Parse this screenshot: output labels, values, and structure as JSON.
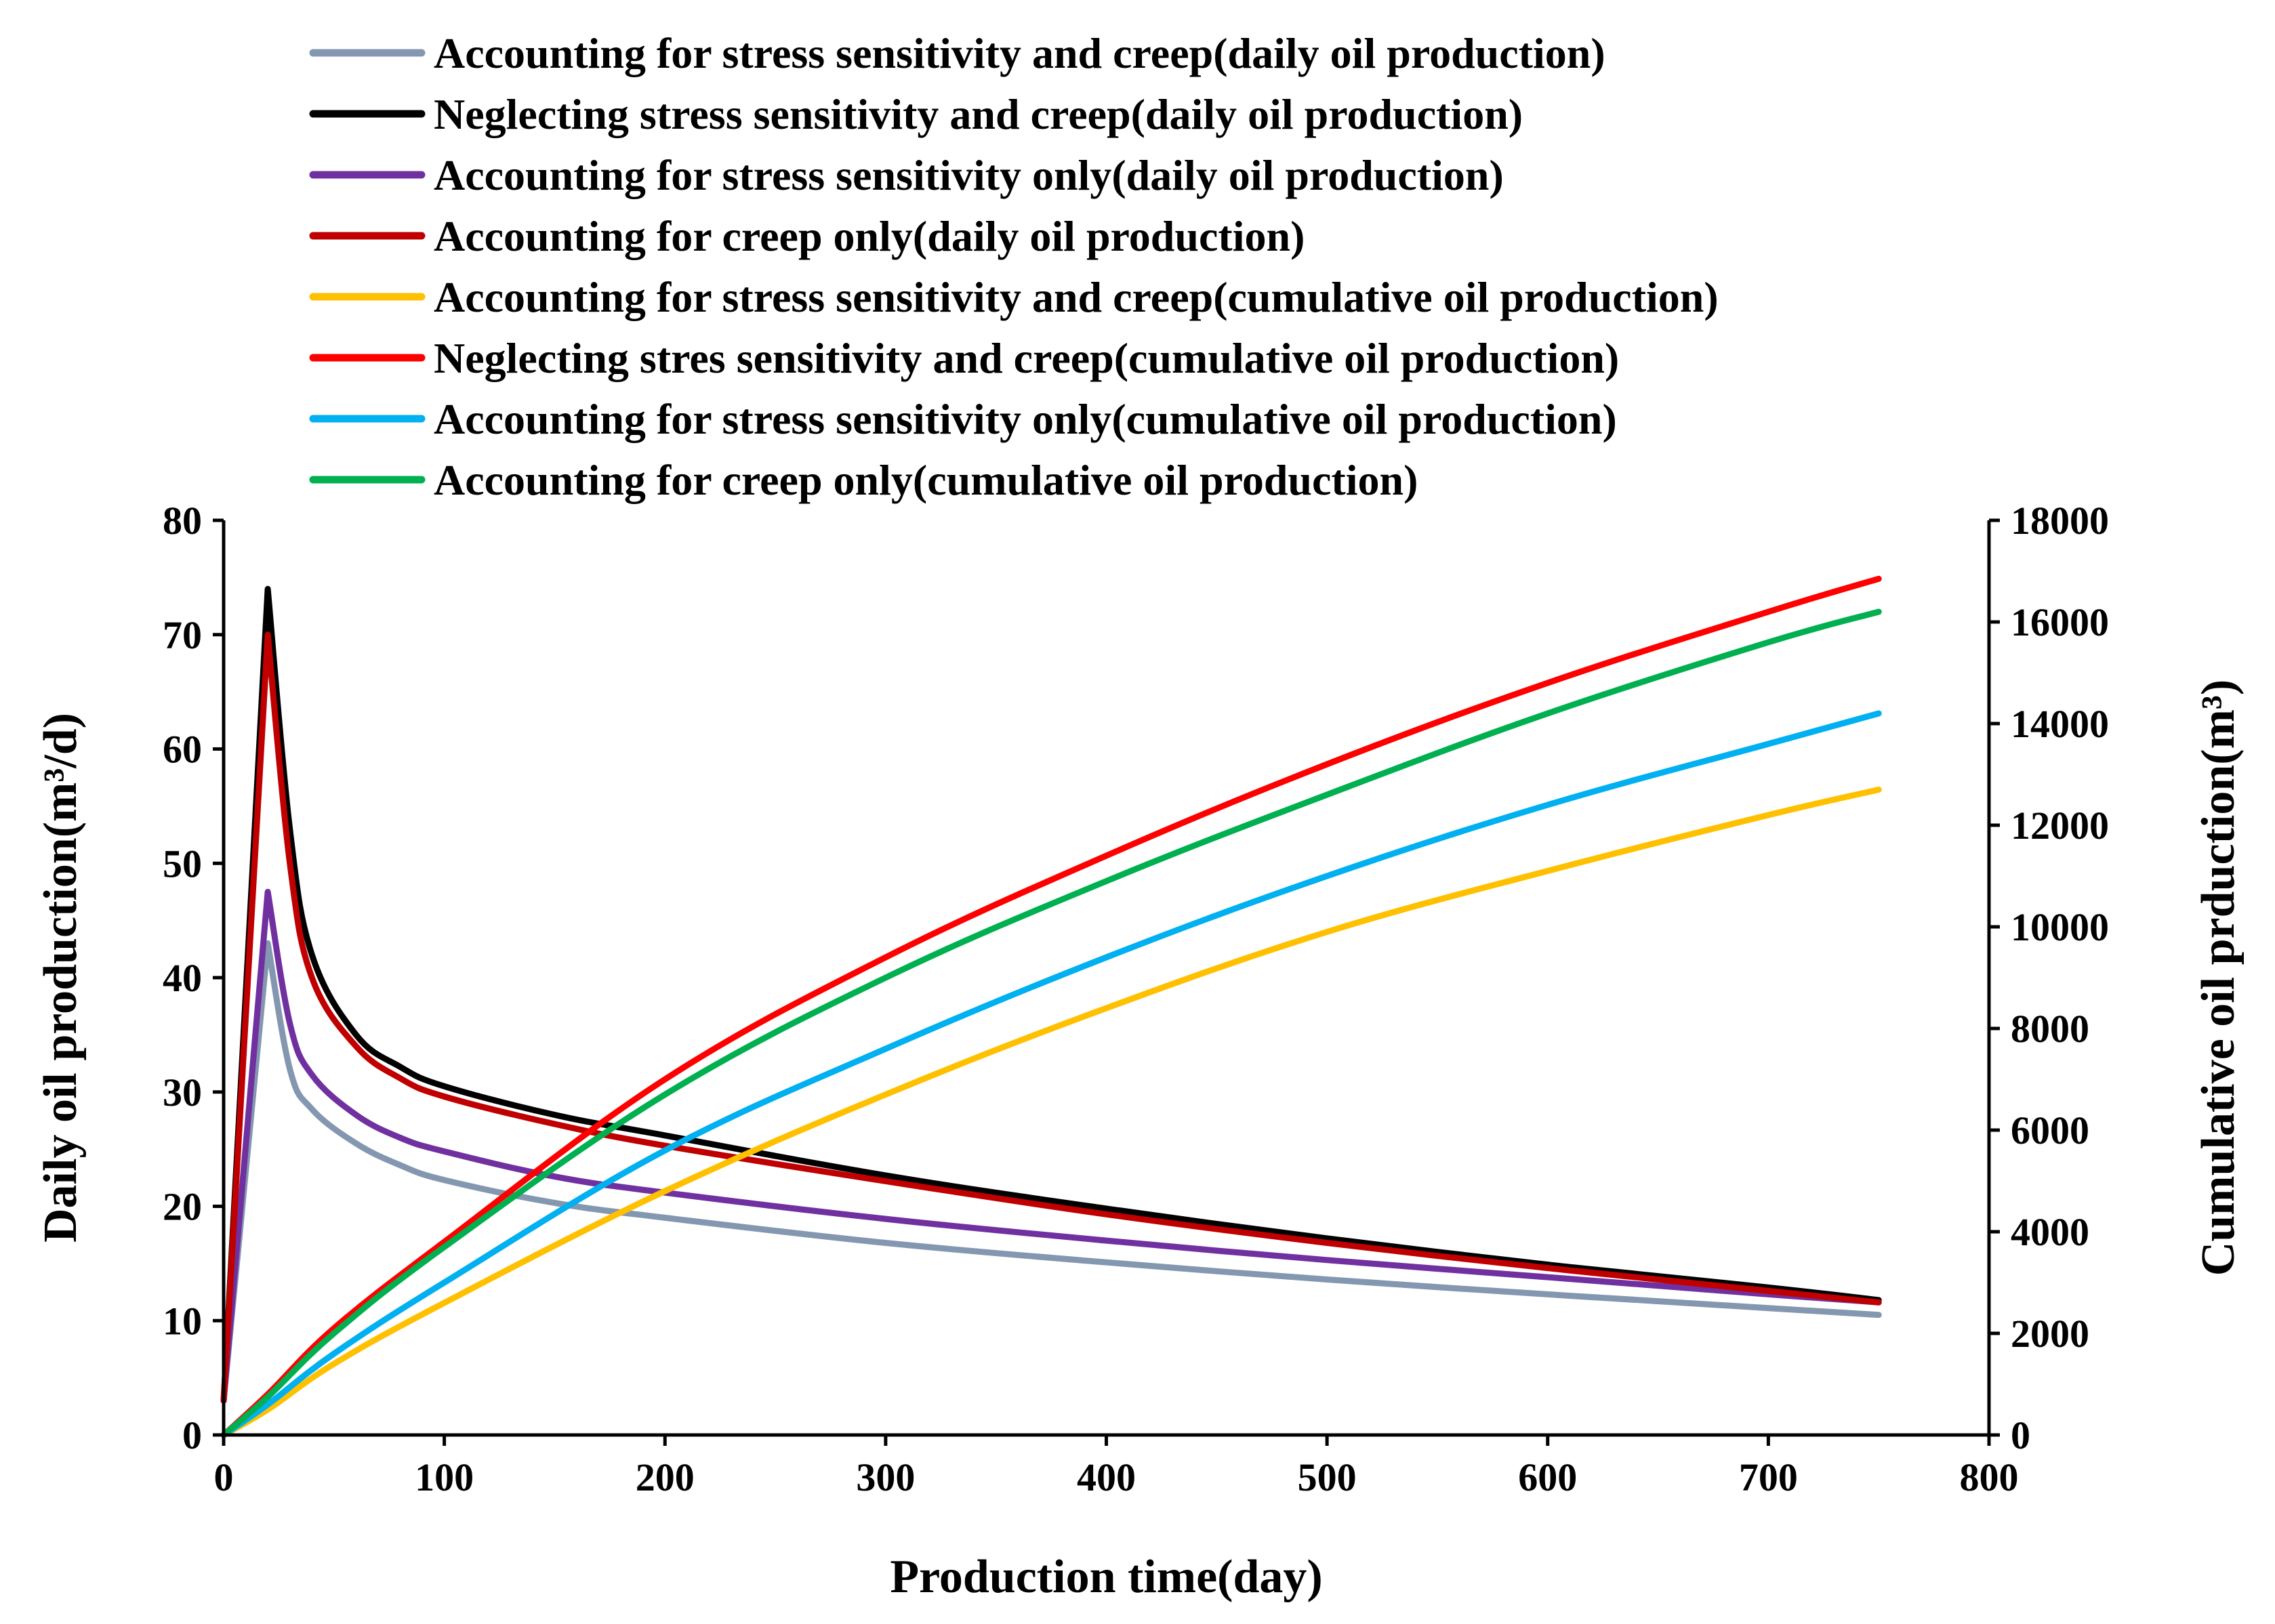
{
  "chart_data": {
    "type": "line",
    "xlabel": "Production time(day)",
    "ylabel_left": "Daily oil production(m³/d)",
    "ylabel_right": "Cumulative oil prduction(m³)",
    "xlim": [
      0,
      800
    ],
    "ylim_left": [
      0,
      80
    ],
    "ylim_right": [
      0,
      18000
    ],
    "x_ticks": [
      "0",
      "100",
      "200",
      "300",
      "400",
      "500",
      "600",
      "700",
      "800"
    ],
    "y_ticks_left": [
      "0",
      "10",
      "20",
      "30",
      "40",
      "50",
      "60",
      "70",
      "80"
    ],
    "y_ticks_right": [
      "0",
      "2000",
      "4000",
      "6000",
      "8000",
      "10000",
      "12000",
      "14000",
      "16000",
      "18000"
    ],
    "grid": false,
    "legend_position": "top",
    "series": [
      {
        "name": "Accounting for stress sensitivity and creep(daily oil production)",
        "axis": "left",
        "color": "#8497B0",
        "x": [
          0,
          20,
          30,
          40,
          60,
          80,
          100,
          150,
          200,
          300,
          400,
          500,
          600,
          700,
          750
        ],
        "y": [
          3,
          43,
          32,
          28.5,
          25.5,
          23.6,
          22.3,
          20.3,
          19,
          16.8,
          15.1,
          13.6,
          12.3,
          11.1,
          10.5
        ]
      },
      {
        "name": "Neglecting stress sensitivity and creep(daily oil production)",
        "axis": "left",
        "color": "#000000",
        "x": [
          0,
          20,
          30,
          40,
          60,
          80,
          100,
          150,
          200,
          300,
          400,
          500,
          600,
          700,
          750
        ],
        "y": [
          3,
          74,
          53,
          42,
          35,
          32.2,
          30.5,
          28,
          26.2,
          22.7,
          19.8,
          17.2,
          14.9,
          12.9,
          11.8
        ]
      },
      {
        "name": "Accounting for stress sensitivity only(daily oil production)",
        "axis": "left",
        "color": "#7030A0",
        "x": [
          0,
          20,
          30,
          40,
          60,
          80,
          100,
          150,
          200,
          300,
          400,
          500,
          600,
          700,
          750
        ],
        "y": [
          3,
          47.5,
          36,
          31.5,
          28,
          26,
          24.8,
          22.6,
          21.2,
          18.9,
          17,
          15.3,
          13.8,
          12.3,
          11.6
        ]
      },
      {
        "name": "Accounting for creep only(daily oil production)",
        "axis": "left",
        "color": "#C00000",
        "x": [
          0,
          20,
          30,
          40,
          60,
          80,
          100,
          150,
          200,
          300,
          400,
          500,
          600,
          700,
          750
        ],
        "y": [
          3,
          70,
          50,
          40,
          34,
          31.2,
          29.6,
          27.2,
          25.3,
          22.2,
          19.3,
          16.8,
          14.6,
          12.6,
          11.6
        ]
      },
      {
        "name": "Accounting for stress sensitivity and creep(cumulative oil production)",
        "axis": "right",
        "color": "#FFC000",
        "x": [
          0,
          20,
          50,
          100,
          200,
          300,
          400,
          500,
          600,
          700,
          750
        ],
        "y": [
          0,
          500,
          1400,
          2600,
          4800,
          6700,
          8400,
          9900,
          11100,
          12200,
          12700
        ]
      },
      {
        "name": "Neglecting stres sensitivity and creep(cumulative oil production)",
        "axis": "right",
        "color": "#FF0000",
        "x": [
          0,
          20,
          50,
          100,
          200,
          300,
          400,
          500,
          600,
          700,
          750
        ],
        "y": [
          0,
          800,
          2100,
          3800,
          7000,
          9400,
          11400,
          13200,
          14800,
          16200,
          16850
        ]
      },
      {
        "name": "Accounting for stress sensitivity only(cumulative oil production)",
        "axis": "right",
        "color": "#00B0F0",
        "x": [
          0,
          20,
          50,
          100,
          200,
          300,
          400,
          500,
          600,
          700,
          750
        ],
        "y": [
          0,
          600,
          1600,
          3000,
          5600,
          7600,
          9400,
          11000,
          12400,
          13600,
          14200
        ]
      },
      {
        "name": "Accounting for creep only(cumulative oil production)",
        "axis": "right",
        "color": "#00B050",
        "x": [
          0,
          20,
          50,
          100,
          200,
          300,
          400,
          500,
          600,
          700,
          750
        ],
        "y": [
          0,
          750,
          2000,
          3700,
          6700,
          9000,
          10900,
          12600,
          14200,
          15600,
          16200
        ]
      }
    ]
  }
}
